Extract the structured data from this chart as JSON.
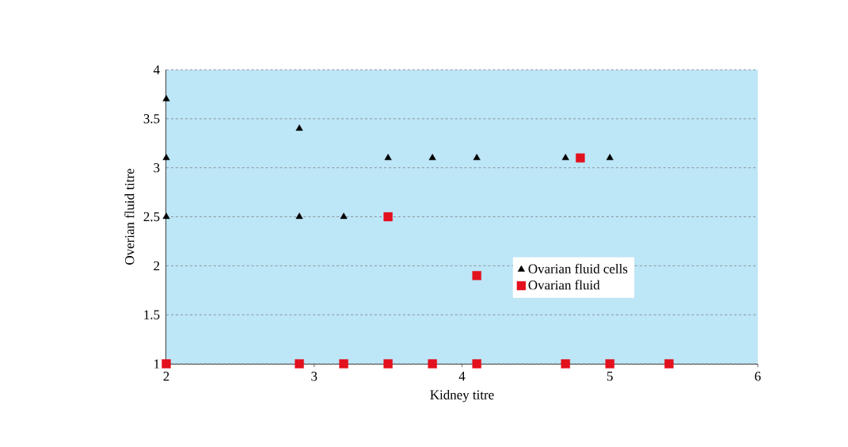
{
  "chart_data": {
    "type": "scatter",
    "xlabel": "Kidney titre",
    "ylabel": "Overian fluid titre",
    "xlim": [
      2,
      6
    ],
    "xticks": [
      2,
      3,
      4,
      5,
      6
    ],
    "ylim": [
      1,
      4
    ],
    "yticks": [
      1,
      1.5,
      2,
      2.5,
      3,
      3.5,
      4
    ],
    "grid": "y",
    "legend": "right",
    "series": [
      {
        "name": "Ovarian fluid cells",
        "color": "#000000",
        "marker": "triangle",
        "x": [
          2,
          2,
          2,
          2.9,
          2.9,
          3.2,
          3.5,
          3.8,
          4.1,
          4.7,
          5
        ],
        "values": [
          3.7,
          3.1,
          2.5,
          3.4,
          2.5,
          2.5,
          3.1,
          3.1,
          3.1,
          3.1,
          3.1
        ]
      },
      {
        "name": "Ovarian fluid",
        "color": "#e3101d",
        "marker": "square",
        "x": [
          2,
          2.9,
          3.2,
          3.5,
          3.8,
          4.1,
          4.7,
          5,
          5.4,
          3.5,
          4.1,
          4.8
        ],
        "values": [
          1,
          1,
          1,
          1,
          1,
          1,
          1,
          1,
          1,
          2.5,
          1.9,
          3.1
        ]
      }
    ]
  }
}
